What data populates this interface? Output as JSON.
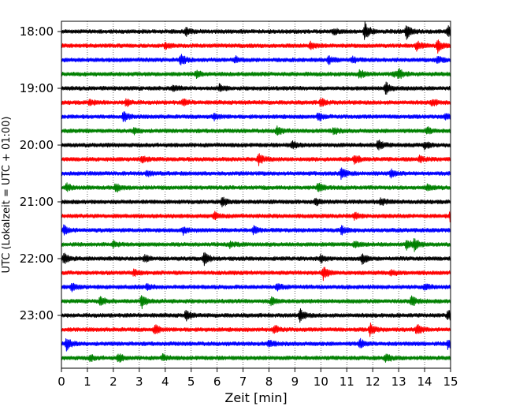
{
  "chart_data": {
    "type": "line",
    "title": "",
    "xlabel": "Zeit  [min]",
    "ylabel": "UTC (Lokalzeit = UTC + 01:00)",
    "xlim": [
      0,
      15
    ],
    "x_ticks": [
      "0",
      "1",
      "2",
      "3",
      "4",
      "5",
      "6",
      "7",
      "8",
      "9",
      "10",
      "11",
      "12",
      "13",
      "14",
      "15"
    ],
    "y_tick_labels": [
      "18:00",
      "19:00",
      "20:00",
      "21:00",
      "22:00",
      "23:00"
    ],
    "grid": "vertical dotted lines at each minute",
    "colors": [
      "#000000",
      "#ff0000",
      "#0000ff",
      "#008000"
    ],
    "series": [
      {
        "start": "18:00",
        "color": "#000000",
        "events": [
          [
            4.8,
            0.6
          ],
          [
            10.5,
            0.5
          ],
          [
            11.7,
            1.6
          ],
          [
            13.3,
            1.4
          ],
          [
            14.9,
            0.8
          ]
        ]
      },
      {
        "start": "18:15",
        "color": "#ff0000",
        "events": [
          [
            4.0,
            0.4
          ],
          [
            9.6,
            0.5
          ],
          [
            13.7,
            0.7
          ],
          [
            14.5,
            1.1
          ]
        ]
      },
      {
        "start": "18:30",
        "color": "#0000ff",
        "events": [
          [
            4.6,
            1.0
          ],
          [
            6.7,
            0.5
          ],
          [
            10.3,
            0.6
          ],
          [
            11.2,
            0.5
          ],
          [
            14.5,
            0.6
          ]
        ]
      },
      {
        "start": "18:45",
        "color": "#008000",
        "events": [
          [
            5.2,
            0.5
          ],
          [
            11.5,
            0.7
          ],
          [
            12.8,
            0.4
          ],
          [
            13.0,
            0.9
          ]
        ]
      },
      {
        "start": "19:00",
        "color": "#000000",
        "events": [
          [
            4.3,
            0.6
          ],
          [
            6.1,
            0.6
          ],
          [
            12.5,
            1.1
          ]
        ]
      },
      {
        "start": "19:15",
        "color": "#ff0000",
        "events": [
          [
            1.1,
            0.5
          ],
          [
            2.5,
            0.6
          ],
          [
            4.7,
            0.5
          ],
          [
            10.0,
            0.7
          ],
          [
            14.3,
            0.6
          ]
        ]
      },
      {
        "start": "19:30",
        "color": "#0000ff",
        "events": [
          [
            2.4,
            0.8
          ],
          [
            5.9,
            0.5
          ],
          [
            9.9,
            0.7
          ],
          [
            14.8,
            0.5
          ]
        ]
      },
      {
        "start": "19:45",
        "color": "#008000",
        "events": [
          [
            2.8,
            0.5
          ],
          [
            8.3,
            0.8
          ],
          [
            10.5,
            0.5
          ],
          [
            14.1,
            0.6
          ]
        ]
      },
      {
        "start": "20:00",
        "color": "#000000",
        "events": [
          [
            8.9,
            0.6
          ],
          [
            12.2,
            0.9
          ],
          [
            14.0,
            0.6
          ]
        ]
      },
      {
        "start": "20:15",
        "color": "#ff0000",
        "events": [
          [
            3.1,
            0.6
          ],
          [
            7.6,
            1.0
          ],
          [
            11.3,
            0.8
          ],
          [
            13.8,
            0.5
          ]
        ]
      },
      {
        "start": "20:30",
        "color": "#0000ff",
        "events": [
          [
            3.3,
            0.5
          ],
          [
            10.8,
            1.1
          ],
          [
            12.7,
            0.6
          ]
        ]
      },
      {
        "start": "20:45",
        "color": "#008000",
        "events": [
          [
            0.2,
            0.6
          ],
          [
            2.1,
            0.7
          ],
          [
            9.9,
            0.8
          ],
          [
            14.1,
            0.5
          ]
        ]
      },
      {
        "start": "21:00",
        "color": "#000000",
        "events": [
          [
            6.2,
            0.8
          ],
          [
            9.8,
            0.6
          ],
          [
            12.3,
            0.6
          ]
        ]
      },
      {
        "start": "21:15",
        "color": "#ff0000",
        "events": [
          [
            5.9,
            0.6
          ],
          [
            11.3,
            0.6
          ],
          [
            15.0,
            1.1
          ]
        ]
      },
      {
        "start": "21:30",
        "color": "#0000ff",
        "events": [
          [
            0.1,
            0.8
          ],
          [
            4.7,
            0.6
          ],
          [
            7.4,
            0.6
          ],
          [
            10.8,
            0.6
          ]
        ]
      },
      {
        "start": "21:45",
        "color": "#008000",
        "events": [
          [
            2.0,
            0.5
          ],
          [
            6.5,
            0.5
          ],
          [
            11.3,
            0.5
          ],
          [
            13.3,
            0.9
          ],
          [
            13.6,
            1.0
          ]
        ]
      },
      {
        "start": "22:00",
        "color": "#000000",
        "events": [
          [
            0.1,
            0.9
          ],
          [
            3.2,
            0.6
          ],
          [
            5.5,
            1.1
          ],
          [
            10.0,
            0.6
          ],
          [
            11.6,
            0.9
          ]
        ]
      },
      {
        "start": "22:15",
        "color": "#ff0000",
        "events": [
          [
            2.8,
            0.5
          ],
          [
            10.1,
            1.2
          ],
          [
            12.7,
            0.5
          ]
        ]
      },
      {
        "start": "22:30",
        "color": "#0000ff",
        "events": [
          [
            0.4,
            0.6
          ],
          [
            3.3,
            0.5
          ],
          [
            8.3,
            0.6
          ],
          [
            14.0,
            0.5
          ]
        ]
      },
      {
        "start": "22:45",
        "color": "#008000",
        "events": [
          [
            1.5,
            0.7
          ],
          [
            3.1,
            1.4
          ],
          [
            8.1,
            0.8
          ],
          [
            13.5,
            0.9
          ]
        ]
      },
      {
        "start": "23:00",
        "color": "#000000",
        "events": [
          [
            4.8,
            0.8
          ],
          [
            9.2,
            1.0
          ],
          [
            14.9,
            0.9
          ]
        ]
      },
      {
        "start": "23:15",
        "color": "#ff0000",
        "events": [
          [
            3.6,
            0.8
          ],
          [
            8.2,
            0.7
          ],
          [
            11.9,
            1.0
          ],
          [
            13.7,
            0.9
          ]
        ]
      },
      {
        "start": "23:30",
        "color": "#0000ff",
        "events": [
          [
            0.2,
            1.2
          ],
          [
            8.0,
            0.6
          ],
          [
            11.5,
            0.8
          ],
          [
            14.9,
            0.8
          ]
        ]
      },
      {
        "start": "23:45",
        "color": "#008000",
        "events": [
          [
            1.1,
            0.5
          ],
          [
            2.2,
            0.7
          ],
          [
            3.9,
            0.5
          ],
          [
            12.5,
            0.8
          ]
        ]
      }
    ]
  }
}
